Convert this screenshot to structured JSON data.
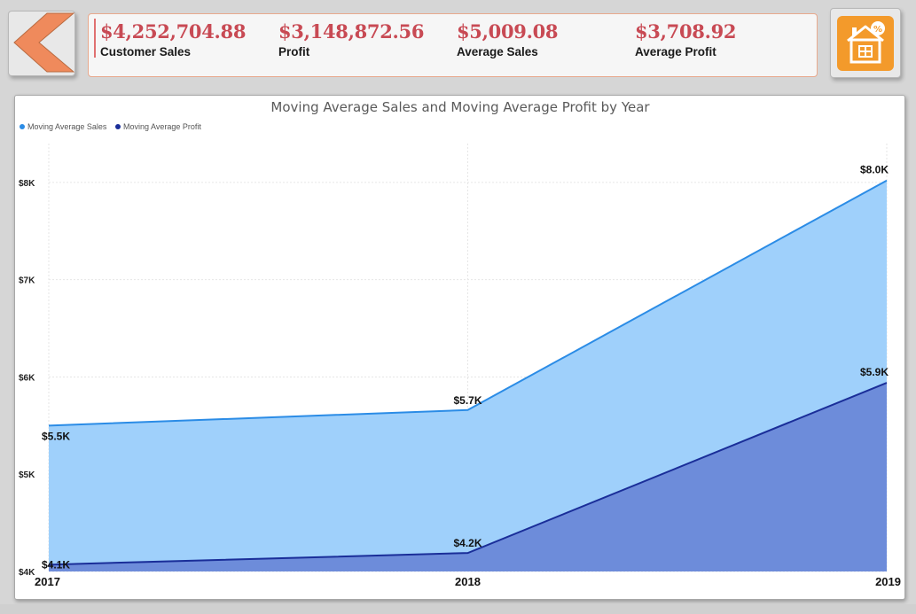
{
  "kpis": [
    {
      "value": "$4,252,704.88",
      "label": "Customer Sales"
    },
    {
      "value": "$3,148,872.56",
      "label": "Profit"
    },
    {
      "value": "$5,009.08",
      "label": "Average Sales"
    },
    {
      "value": "$3,708.92",
      "label": "Average Profit"
    }
  ],
  "nav": {
    "back_icon": "back-arrow-icon",
    "home_icon": "home-percent-icon"
  },
  "colors": {
    "sales": "#2b8ce6",
    "sales_fill": "#9fd0fb",
    "profit": "#1a2e99",
    "profit_fill": "#6a88d8",
    "kpi_value": "#c84a54",
    "home_button": "#f39a2b",
    "back_arrow": "#ef8a5c"
  },
  "chart_data": {
    "type": "area",
    "title": "Moving Average Sales and Moving Average Profit by Year",
    "x": [
      "2017",
      "2018",
      "2019"
    ],
    "series": [
      {
        "name": "Moving Average Sales",
        "values": [
          5.5,
          5.66,
          8.02
        ],
        "labels": [
          "$5.5K",
          "$5.7K",
          "$8.0K"
        ]
      },
      {
        "name": "Moving Average Profit",
        "values": [
          4.07,
          4.19,
          5.94
        ],
        "labels": [
          "$4.1K",
          "$4.2K",
          "$5.9K"
        ]
      }
    ],
    "yticks": [
      4,
      5,
      6,
      7,
      8
    ],
    "ytick_labels": [
      "$4K",
      "$5K",
      "$6K",
      "$7K",
      "$8K"
    ],
    "ylim": [
      4,
      8.4
    ],
    "legend": "top-left",
    "grid": true
  }
}
